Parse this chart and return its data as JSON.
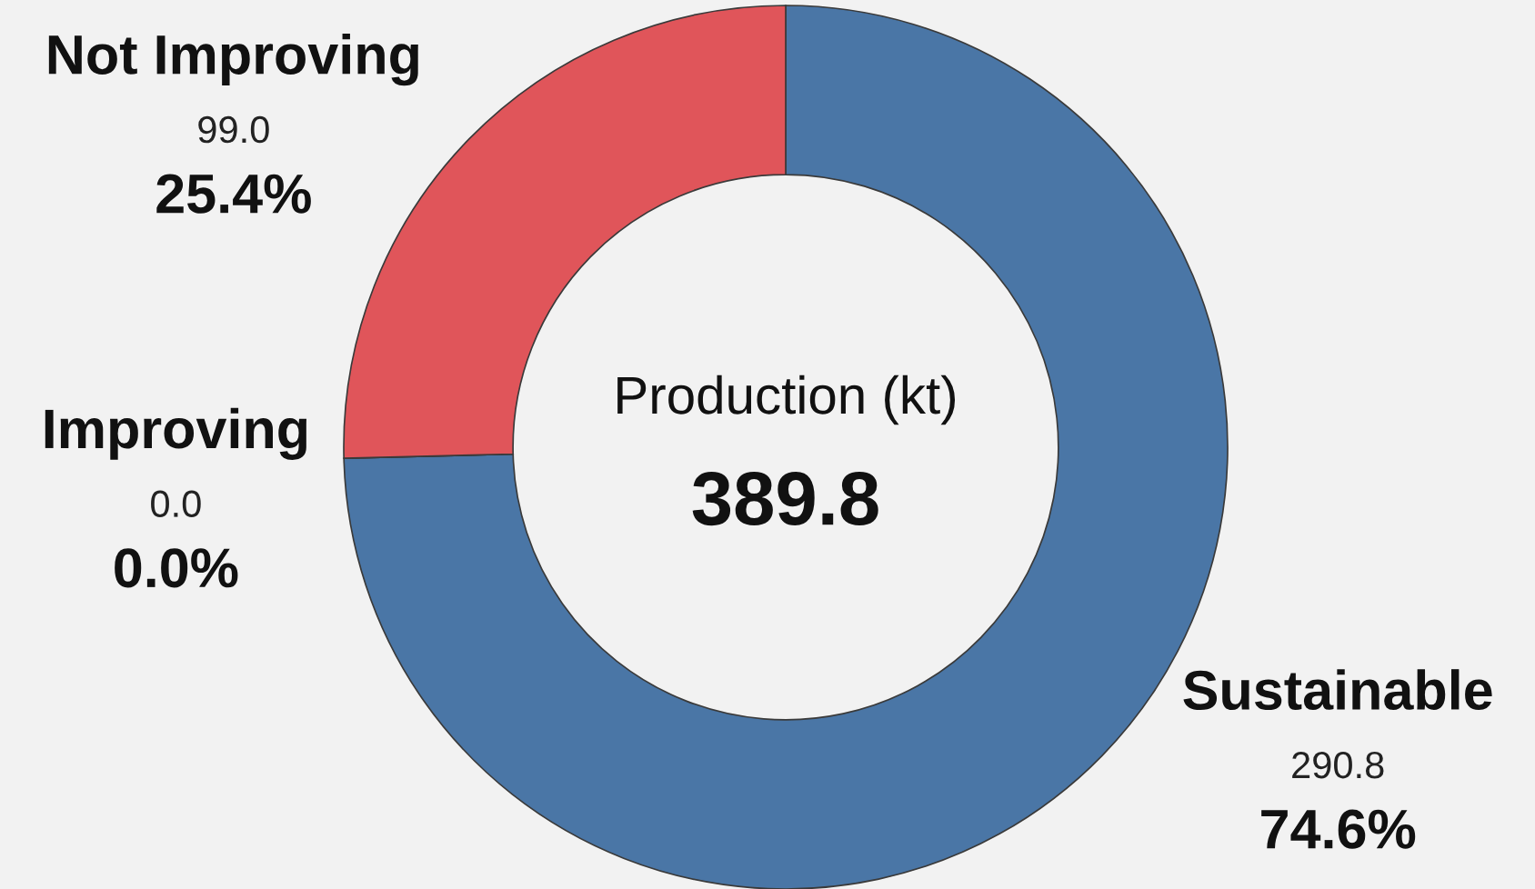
{
  "chart_data": {
    "type": "donut",
    "categories": [
      "Sustainable",
      "Improving",
      "Not Improving"
    ],
    "values": [
      290.8,
      0.0,
      99.0
    ],
    "colors": [
      "#4a76a6",
      "#70ad47",
      "#e0555a"
    ],
    "value_labels": [
      "290.8\n74.6%",
      "0.0\n0.0%",
      "99.0\n25.4%"
    ],
    "annotations": [
      "Production (kt)",
      "389.8"
    ]
  }
}
